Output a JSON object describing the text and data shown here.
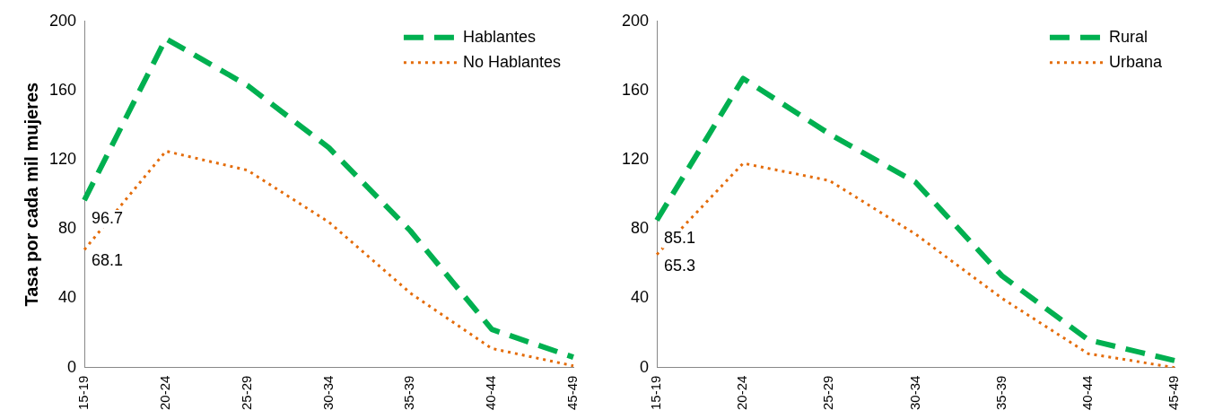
{
  "chart_data": [
    {
      "type": "line",
      "ylabel": "Tasa por cada mil mujeres",
      "categories": [
        "15-19",
        "20-24",
        "25-29",
        "30-34",
        "35-39",
        "40-44",
        "45-49"
      ],
      "ylim": [
        0,
        200
      ],
      "yticks": [
        0,
        40,
        80,
        120,
        160,
        200
      ],
      "grid": false,
      "legend": "top right",
      "marker": "none",
      "series": [
        {
          "name": "Hablantes",
          "color": "#00b050",
          "line_style": "dashed",
          "values": [
            96.7,
            190,
            163,
            127,
            79,
            22,
            6
          ],
          "value_labels": [
            "96.7",
            null,
            null,
            null,
            null,
            null,
            null
          ]
        },
        {
          "name": "No Hablantes",
          "color": "#e46c0a",
          "line_style": "dotted",
          "values": [
            68.1,
            125,
            114,
            84,
            43,
            11,
            1
          ],
          "value_labels": [
            "68.1",
            null,
            null,
            null,
            null,
            null,
            null
          ]
        }
      ]
    },
    {
      "type": "line",
      "categories": [
        "15-19",
        "20-24",
        "25-29",
        "30-34",
        "35-39",
        "40-44",
        "45-49"
      ],
      "ylim": [
        0,
        200
      ],
      "yticks": [
        0,
        40,
        80,
        120,
        160,
        200
      ],
      "grid": false,
      "legend": "top right",
      "marker": "none",
      "series": [
        {
          "name": "Rural",
          "color": "#00b050",
          "line_style": "dashed",
          "values": [
            85.1,
            167,
            135,
            107,
            53,
            16,
            4
          ],
          "value_labels": [
            "85.1",
            null,
            null,
            null,
            null,
            null,
            null
          ]
        },
        {
          "name": "Urbana",
          "color": "#e46c0a",
          "line_style": "dotted",
          "values": [
            65.3,
            118,
            108,
            77,
            40,
            8,
            0
          ],
          "value_labels": [
            "65.3",
            null,
            null,
            null,
            null,
            null,
            null
          ]
        }
      ]
    }
  ]
}
